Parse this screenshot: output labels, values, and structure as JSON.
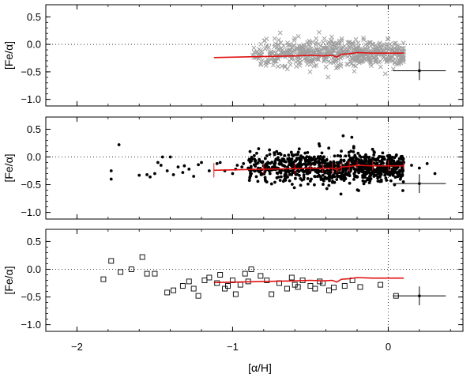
{
  "chart_data": {
    "type": "scatter",
    "layout": "three vertically stacked panels sharing the x axis",
    "xlabel": "[α/H]",
    "xlim": [
      -2.2,
      0.48
    ],
    "x_ticks": [
      -2,
      -1,
      0
    ],
    "x_tick_labels": [
      "−2",
      "−1",
      "0"
    ],
    "reference_lines": {
      "x": 0,
      "y": 0,
      "style": "dotted"
    },
    "panels": [
      {
        "ylabel": "[Fe/α]",
        "ylim": [
          -1.12,
          0.72
        ],
        "y_ticks": [
          0.5,
          0.0,
          -0.5,
          -1.0
        ],
        "y_tick_labels": [
          "0.5",
          "0.0",
          "−0.5",
          "−1.0"
        ],
        "marker": "x",
        "marker_color": "#a0a0a0",
        "cloud": {
          "x_range": [
            -0.88,
            0.1
          ],
          "mean_y": -0.16,
          "spread_y": 0.1,
          "count": 600
        },
        "trend_line": {
          "color": "#e01010",
          "x": [
            -1.12,
            -0.8,
            -0.6,
            -0.5,
            -0.42,
            -0.36,
            -0.33,
            -0.3,
            -0.25,
            -0.2,
            -0.1,
            0.0,
            0.1
          ],
          "y": [
            -0.24,
            -0.22,
            -0.21,
            -0.2,
            -0.21,
            -0.2,
            -0.23,
            -0.18,
            -0.17,
            -0.15,
            -0.16,
            -0.16,
            -0.16
          ]
        },
        "error_bar": {
          "x": 0.2,
          "y": -0.48,
          "x_err": 0.17,
          "y_err": 0.17
        }
      },
      {
        "ylabel": "[Fe/α]",
        "ylim": [
          -1.12,
          0.72
        ],
        "y_ticks": [
          0.5,
          0.0,
          -0.5,
          -1.0
        ],
        "y_tick_labels": [
          "0.5",
          "0.0",
          "−0.5",
          "−1.0"
        ],
        "marker": "filled circle",
        "marker_color": "#000000",
        "points": {
          "x": [
            -1.73,
            -1.78,
            -1.78,
            -1.6,
            -1.55,
            -1.48,
            -1.45,
            -1.42,
            -1.4,
            -1.35,
            -1.31,
            -1.28,
            -1.25,
            -1.2,
            -1.1,
            -1.05,
            -1.0,
            -0.97,
            -0.93,
            -0.9,
            -1.53,
            -1.5,
            -1.46,
            -1.38,
            -1.32,
            -1.22,
            -1.15,
            -1.08,
            -0.98,
            -0.94,
            -0.88,
            0.1,
            0.15,
            0.2,
            0.25,
            0.3
          ],
          "y": [
            0.22,
            -0.25,
            -0.4,
            -0.33,
            -0.32,
            -0.1,
            0.0,
            -0.25,
            0.0,
            -0.18,
            -0.16,
            -0.22,
            -0.35,
            -0.1,
            -0.12,
            -0.25,
            -0.3,
            -0.15,
            -0.12,
            -0.2,
            -0.36,
            -0.3,
            -0.15,
            -0.32,
            -0.28,
            -0.14,
            -0.25,
            -0.1,
            -0.22,
            -0.18,
            -0.3,
            -0.1,
            -0.15,
            -0.2,
            -0.12,
            -0.3
          ]
        },
        "cloud": {
          "x_range": [
            -0.9,
            0.1
          ],
          "mean_y": -0.18,
          "spread_y": 0.12,
          "count": 900
        },
        "trend_line": {
          "color": "#e01010",
          "x": [
            -1.12,
            -0.8,
            -0.6,
            -0.5,
            -0.42,
            -0.36,
            -0.33,
            -0.3,
            -0.25,
            -0.2,
            -0.1,
            0.0,
            0.1
          ],
          "y": [
            -0.24,
            -0.22,
            -0.21,
            -0.2,
            -0.21,
            -0.2,
            -0.23,
            -0.18,
            -0.17,
            -0.15,
            -0.16,
            -0.16,
            -0.16
          ],
          "error_bars": true
        },
        "error_bar": {
          "x": 0.2,
          "y": -0.48,
          "x_err": 0.17,
          "y_err": 0.17
        }
      },
      {
        "ylabel": "[Fe/α]",
        "ylim": [
          -1.12,
          0.72
        ],
        "y_ticks": [
          0.5,
          0.0,
          -0.5,
          -1.0
        ],
        "y_tick_labels": [
          "0.5",
          "0.0",
          "−0.5",
          "−1.0"
        ],
        "marker": "open square",
        "marker_color": "#000000",
        "points": {
          "x": [
            -1.83,
            -1.78,
            -1.72,
            -1.65,
            -1.58,
            -1.55,
            -1.5,
            -1.42,
            -1.38,
            -1.32,
            -1.28,
            -1.25,
            -1.22,
            -1.18,
            -1.15,
            -1.1,
            -1.05,
            -1.03,
            -1.0,
            -0.98,
            -0.95,
            -0.9,
            -0.88,
            -0.82,
            -0.78,
            -0.75,
            -0.7,
            -0.65,
            -0.6,
            -0.58,
            -0.55,
            -0.5,
            -0.47,
            -0.42,
            -0.38,
            -0.35,
            -0.28,
            -0.23,
            -0.18,
            -0.05,
            0.05,
            -1.08,
            -0.92,
            -0.62,
            -0.44
          ],
          "y": [
            -0.18,
            0.15,
            -0.05,
            0.0,
            0.22,
            -0.08,
            -0.08,
            -0.42,
            -0.38,
            -0.3,
            -0.22,
            -0.35,
            -0.48,
            -0.2,
            -0.15,
            -0.25,
            -0.35,
            -0.3,
            -0.2,
            -0.45,
            -0.28,
            -0.22,
            0.0,
            -0.12,
            -0.2,
            -0.45,
            -0.25,
            -0.35,
            -0.28,
            -0.32,
            -0.2,
            -0.3,
            -0.35,
            -0.25,
            -0.38,
            -0.33,
            -0.3,
            -0.2,
            -0.32,
            -0.28,
            -0.48,
            -0.1,
            -0.08,
            -0.15,
            -0.22
          ]
        },
        "trend_line": {
          "color": "#e01010",
          "x": [
            -1.12,
            -0.8,
            -0.6,
            -0.5,
            -0.42,
            -0.36,
            -0.33,
            -0.3,
            -0.25,
            -0.2,
            -0.1,
            0.0,
            0.1
          ],
          "y": [
            -0.24,
            -0.22,
            -0.21,
            -0.2,
            -0.21,
            -0.2,
            -0.23,
            -0.18,
            -0.17,
            -0.15,
            -0.16,
            -0.16,
            -0.16
          ]
        },
        "error_bar": {
          "x": 0.2,
          "y": -0.48,
          "x_err": 0.17,
          "y_err": 0.17
        }
      }
    ]
  }
}
